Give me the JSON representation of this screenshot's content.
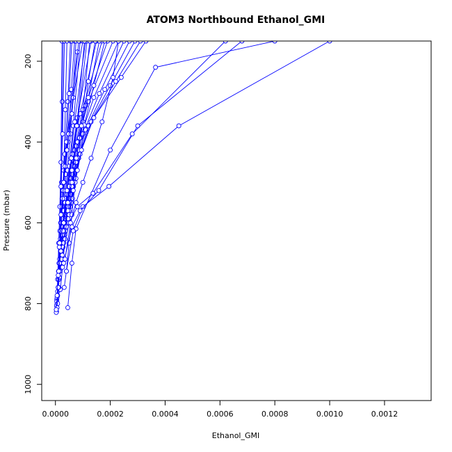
{
  "chart_data": {
    "type": "line",
    "title": "ATOM3 Northbound Ethanol_GMI",
    "xlabel": "Ethanol_GMI",
    "ylabel": "Pressure (mbar)",
    "xlim": [
      -5e-05,
      0.00137
    ],
    "ylim": [
      1040,
      150
    ],
    "y_reversed": true,
    "grid": false,
    "x_ticks": [
      0,
      0.0002,
      0.0004,
      0.0006,
      0.0008,
      0.001,
      0.0012
    ],
    "x_tick_labels": [
      "0.0000",
      "0.0002",
      "0.0004",
      "0.0006",
      "0.0008",
      "0.0010",
      "0.0012"
    ],
    "y_ticks": [
      200,
      400,
      600,
      800,
      1000
    ],
    "y_tick_labels": [
      "200",
      "400",
      "600",
      "800",
      "1000"
    ],
    "line_color": "#0000ff",
    "series": [
      {
        "x": [
          4e-06,
          6e-06,
          1e-05,
          1.4e-05,
          1.9e-05,
          2.2e-05,
          2.5e-05,
          2.8e-05
        ],
        "y": [
          820,
          800,
          760,
          700,
          600,
          500,
          300,
          150
        ]
      },
      {
        "x": [
          3e-06,
          5e-06,
          8e-06,
          1.2e-05,
          1.6e-05,
          2e-05,
          2.4e-05
        ],
        "y": [
          822,
          790,
          740,
          650,
          560,
          450,
          150
        ]
      },
      {
        "x": [
          4e-06,
          7e-06,
          1.1e-05,
          1.6e-05,
          2e-05,
          2.6e-05,
          3.3e-05
        ],
        "y": [
          805,
          780,
          720,
          620,
          510,
          380,
          150
        ]
      },
      {
        "x": [
          5e-06,
          8e-06,
          1.3e-05,
          1.8e-05,
          2.4e-05,
          3e-05,
          3.6e-05,
          4.2e-05
        ],
        "y": [
          795,
          770,
          700,
          640,
          560,
          470,
          320,
          150
        ]
      },
      {
        "x": [
          6e-06,
          1e-05,
          1.5e-05,
          2.1e-05,
          2.7e-05,
          3.4e-05,
          4.5e-05,
          5.5e-05
        ],
        "y": [
          785,
          760,
          690,
          600,
          520,
          430,
          300,
          150
        ]
      },
      {
        "x": [
          8e-06,
          1.3e-05,
          1.8e-05,
          2.5e-05,
          3.2e-05,
          4e-05,
          5e-05,
          6e-05
        ],
        "y": [
          780,
          740,
          670,
          590,
          500,
          420,
          280,
          150
        ]
      },
      {
        "x": [
          1e-05,
          1.6e-05,
          2.2e-05,
          3e-05,
          3.8e-05,
          4.6e-05,
          5.8e-05,
          7e-05
        ],
        "y": [
          760,
          720,
          650,
          570,
          480,
          400,
          270,
          150
        ]
      },
      {
        "x": [
          1.2e-05,
          1.8e-05,
          2.6e-05,
          3.5e-05,
          4.4e-05,
          5.5e-05,
          7.5e-05
        ],
        "y": [
          740,
          700,
          630,
          550,
          470,
          380,
          150
        ]
      },
      {
        "x": [
          1.4e-05,
          2e-05,
          2.8e-05,
          3.8e-05,
          5e-05,
          6.5e-05,
          9e-05
        ],
        "y": [
          735,
          690,
          610,
          540,
          460,
          360,
          150
        ]
      },
      {
        "x": [
          1.6e-05,
          2.4e-05,
          3.2e-05,
          4.2e-05,
          5.4e-05,
          7e-05,
          0.00011
        ],
        "y": [
          720,
          670,
          600,
          530,
          450,
          350,
          150
        ]
      },
      {
        "x": [
          2e-05,
          2.8e-05,
          3.6e-05,
          4.6e-05,
          5.8e-05,
          8e-05,
          0.00013
        ],
        "y": [
          700,
          650,
          590,
          520,
          440,
          340,
          150
        ]
      },
      {
        "x": [
          2.2e-05,
          3e-05,
          4e-05,
          5e-05,
          6.2e-05,
          9e-05,
          0.00015
        ],
        "y": [
          690,
          640,
          580,
          510,
          430,
          330,
          150
        ]
      },
      {
        "x": [
          2.5e-05,
          3.4e-05,
          4.4e-05,
          5.5e-05,
          7e-05,
          0.0001,
          0.00017
        ],
        "y": [
          680,
          630,
          570,
          500,
          420,
          320,
          150
        ]
      },
      {
        "x": [
          2.8e-05,
          3.6e-05,
          4.6e-05,
          5.8e-05,
          7.5e-05,
          0.00011,
          0.00019
        ],
        "y": [
          660,
          610,
          560,
          490,
          410,
          310,
          150
        ]
      },
      {
        "x": [
          3e-05,
          4e-05,
          5e-05,
          6.2e-05,
          8e-05,
          0.00012,
          0.00021
        ],
        "y": [
          650,
          600,
          550,
          480,
          400,
          300,
          150
        ]
      },
      {
        "x": [
          3.4e-05,
          4.4e-05,
          5.4e-05,
          6.6e-05,
          9e-05,
          0.00014,
          0.00023
        ],
        "y": [
          640,
          590,
          540,
          470,
          390,
          290,
          150
        ]
      },
      {
        "x": [
          3.6e-05,
          4.6e-05,
          5.8e-05,
          7.2e-05,
          0.0001,
          0.00016,
          0.00025
        ],
        "y": [
          620,
          580,
          530,
          460,
          380,
          280,
          150
        ]
      },
      {
        "x": [
          4e-05,
          5e-05,
          6.2e-05,
          7.8e-05,
          0.00011,
          0.00018,
          0.00027
        ],
        "y": [
          610,
          570,
          520,
          450,
          370,
          270,
          150
        ]
      },
      {
        "x": [
          4.4e-05,
          5.4e-05,
          6.6e-05,
          8.5e-05,
          0.00012,
          0.0002,
          0.00029
        ],
        "y": [
          600,
          560,
          510,
          440,
          360,
          260,
          150
        ]
      },
      {
        "x": [
          4.6e-05,
          5.8e-05,
          7e-05,
          9e-05,
          0.00013,
          0.00022,
          0.00031
        ],
        "y": [
          590,
          550,
          500,
          430,
          350,
          250,
          150
        ]
      },
      {
        "x": [
          5e-05,
          6.2e-05,
          7.5e-05,
          9.5e-05,
          0.00014,
          0.00024,
          0.00033
        ],
        "y": [
          580,
          540,
          490,
          420,
          340,
          240,
          150
        ]
      },
      {
        "x": [
          3.2e-05,
          4e-05,
          5e-05,
          6e-05,
          7.2e-05,
          8.5e-05,
          0.0001,
          0.00012,
          0.000145
        ],
        "y": [
          760,
          720,
          650,
          580,
          500,
          420,
          350,
          250,
          150
        ]
      },
      {
        "x": [
          1.8e-05,
          2.6e-05,
          3.5e-05,
          4.5e-05,
          6e-05,
          8e-05,
          0.000115
        ],
        "y": [
          765,
          710,
          640,
          560,
          470,
          360,
          150
        ]
      },
      {
        "x": [
          8e-06,
          1.2e-05,
          1.6e-05,
          2e-05,
          2.8e-05,
          4e-05,
          8e-05
        ],
        "y": [
          800,
          760,
          700,
          620,
          520,
          400,
          177
        ]
      },
      {
        "x": [
          6e-06,
          1e-05,
          1.5e-05,
          2e-05,
          2.6e-05,
          3.5e-05,
          4.8e-05,
          6.5e-05,
          0.0001
        ],
        "y": [
          810,
          760,
          700,
          620,
          540,
          460,
          380,
          290,
          150
        ]
      },
      {
        "x": [
          3e-06,
          6e-06,
          1e-05,
          1.4e-05,
          2e-05,
          3e-05,
          4.2e-05,
          6e-05,
          8.5e-05
        ],
        "y": [
          815,
          780,
          730,
          660,
          580,
          500,
          420,
          330,
          150
        ]
      },
      {
        "x": [
          1.2e-05,
          2e-05,
          3e-05,
          4.2e-05,
          5.8e-05,
          7.8e-05,
          0.000106
        ],
        "y": [
          720,
          670,
          600,
          520,
          440,
          360,
          150
        ]
      },
      {
        "x": [
          4.5e-05,
          6e-05,
          7.5e-05,
          0.0002,
          0.000365,
          0.0008
        ],
        "y": [
          810,
          700,
          615,
          420,
          215,
          150
        ]
      },
      {
        "x": [
          4e-05,
          6.5e-05,
          0.0001,
          0.000195,
          0.00045,
          0.001
        ],
        "y": [
          720,
          620,
          560,
          510,
          360,
          150
        ]
      },
      {
        "x": [
          3e-05,
          6e-05,
          9e-05,
          0.000158,
          0.0003,
          0.00068
        ],
        "y": [
          700,
          610,
          570,
          520,
          360,
          150
        ]
      },
      {
        "x": [
          2.5e-05,
          5e-05,
          8e-05,
          0.000137,
          0.00028,
          0.00062
        ],
        "y": [
          680,
          600,
          560,
          527,
          380,
          150
        ]
      },
      {
        "x": [
          3.5e-05,
          5.5e-05,
          7.5e-05,
          0.0001,
          0.00013,
          0.00017,
          0.00021,
          0.00023
        ],
        "y": [
          690,
          600,
          550,
          500,
          440,
          350,
          240,
          150
        ]
      },
      {
        "x": [
          5e-05,
          6.5e-05,
          8e-05,
          9.5e-05,
          0.000105,
          0.00014,
          0.00018
        ],
        "y": [
          570,
          520,
          470,
          420,
          358,
          260,
          150
        ]
      },
      {
        "x": [
          2.8e-05,
          4.5e-05,
          6e-05,
          7.5e-05,
          8.8e-05,
          0.00012,
          0.00016
        ],
        "y": [
          620,
          570,
          510,
          450,
          390,
          290,
          150
        ]
      },
      {
        "x": [
          1.5e-05,
          3e-05,
          4.5e-05,
          6e-05,
          7.6e-05,
          9.5e-05,
          0.000125
        ],
        "y": [
          650,
          600,
          550,
          500,
          440,
          360,
          150
        ]
      }
    ]
  }
}
